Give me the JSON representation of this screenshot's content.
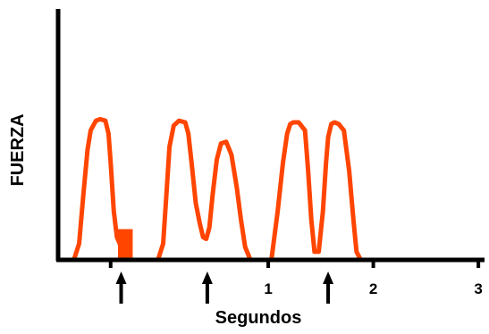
{
  "chart_data": {
    "type": "line",
    "title": "",
    "xlabel": "Segundos",
    "ylabel": "FUERZA",
    "xlim": [
      -1.0,
      3.05
    ],
    "ylim": [
      0,
      1.06
    ],
    "x_ticks": [
      {
        "value": -0.5,
        "label": ""
      },
      {
        "value": 1,
        "label": "1"
      },
      {
        "value": 2,
        "label": "2"
      },
      {
        "value": 3,
        "label": "3"
      }
    ],
    "arrows_at_x": [
      -0.4,
      0.42,
      1.57
    ],
    "marker": {
      "x_start": -0.43,
      "x_end": -0.29,
      "height": 0.19,
      "color": "#ff4500"
    },
    "series": [
      {
        "color": "#ff4500",
        "x": [
          -0.85,
          -0.8,
          -0.76,
          -0.72,
          -0.69,
          -0.64,
          -0.6,
          -0.55,
          -0.52,
          -0.5,
          -0.47,
          -0.44,
          -0.4,
          -0.35,
          -0.32,
          -0.05,
          0.0,
          0.03,
          0.06,
          0.1,
          0.15,
          0.21,
          0.24,
          0.27,
          0.31,
          0.35,
          0.38,
          0.41,
          0.44,
          0.47,
          0.51,
          0.55,
          0.6,
          0.65,
          0.7,
          0.74,
          0.78,
          0.83,
          1.03,
          1.09,
          1.14,
          1.18,
          1.21,
          1.24,
          1.29,
          1.35,
          1.38,
          1.41,
          1.44,
          1.48,
          1.52,
          1.55,
          1.57,
          1.6,
          1.63,
          1.67,
          1.72,
          1.77,
          1.81,
          1.84,
          1.88,
          1.94
        ],
        "y": [
          0.0,
          0.1,
          0.4,
          0.68,
          0.8,
          0.86,
          0.87,
          0.86,
          0.78,
          0.6,
          0.3,
          0.14,
          0.08,
          0.03,
          0.0,
          0.0,
          0.1,
          0.4,
          0.7,
          0.83,
          0.86,
          0.85,
          0.78,
          0.6,
          0.35,
          0.22,
          0.14,
          0.13,
          0.2,
          0.4,
          0.62,
          0.72,
          0.73,
          0.65,
          0.45,
          0.25,
          0.08,
          0.0,
          0.0,
          0.3,
          0.6,
          0.78,
          0.84,
          0.85,
          0.85,
          0.8,
          0.55,
          0.25,
          0.05,
          0.05,
          0.3,
          0.6,
          0.76,
          0.84,
          0.85,
          0.84,
          0.8,
          0.55,
          0.25,
          0.05,
          0.0,
          0.0
        ]
      }
    ],
    "axis_color": "#000000",
    "grid": false,
    "legend": "none"
  }
}
